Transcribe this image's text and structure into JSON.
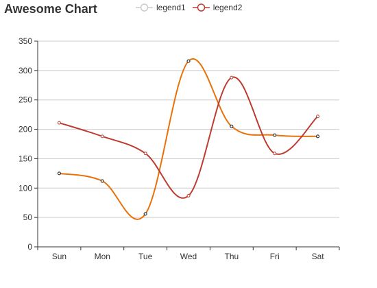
{
  "chart_data": {
    "type": "line",
    "title": "Awesome Chart",
    "xlabel": "",
    "ylabel": "",
    "categories": [
      "Sun",
      "Mon",
      "Tue",
      "Wed",
      "Thu",
      "Fri",
      "Sat"
    ],
    "ylim": [
      0,
      350
    ],
    "yticks": [
      0,
      50,
      100,
      150,
      200,
      250,
      300,
      350
    ],
    "grid": "horizontal",
    "smooth": true,
    "legend_position": "top",
    "series": [
      {
        "name": "legend1",
        "color": "#e8710a",
        "marker_color": "#111111",
        "values": [
          125,
          112,
          56,
          316,
          205,
          190,
          188
        ]
      },
      {
        "name": "legend2",
        "color": "#bd3c31",
        "marker_color": "#bd3c31",
        "values": [
          211,
          188,
          159,
          87,
          288,
          159,
          222
        ]
      }
    ],
    "legend_inactive_color": "#cccccc"
  }
}
